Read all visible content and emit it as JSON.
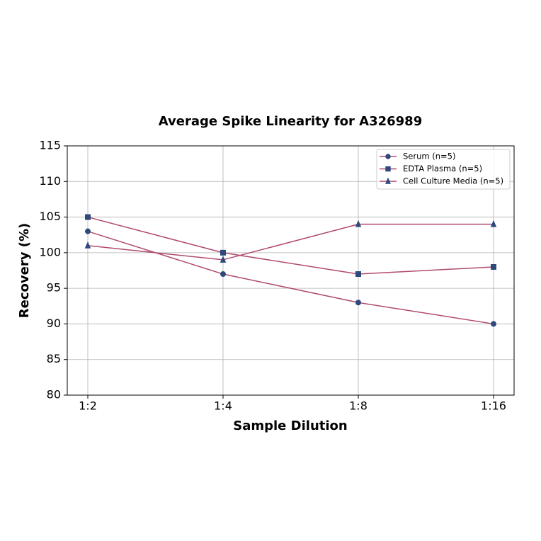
{
  "chart_data": {
    "type": "line",
    "title": "Average Spike Linearity for A326989",
    "x_label": "Sample Dilution",
    "y_label": "Recovery (%)",
    "categories": [
      "1:2",
      "1:4",
      "1:8",
      "1:16"
    ],
    "series": [
      {
        "name": "Serum (n=5)",
        "color": "#b04a6e",
        "marker": "circle",
        "marker_color": "#2e4a7c",
        "values": [
          103,
          97,
          93,
          90
        ]
      },
      {
        "name": "EDTA Plasma (n=5)",
        "color": "#b04a6e",
        "marker": "square",
        "marker_color": "#2e4a7c",
        "values": [
          105,
          100,
          97,
          98
        ]
      },
      {
        "name": "Cell Culture Media (n=5)",
        "color": "#b04a6e",
        "marker": "triangle",
        "marker_color": "#2e4a7c",
        "values": [
          101,
          99,
          104,
          104
        ]
      }
    ],
    "ylim": [
      80,
      115
    ],
    "yticks": [
      80,
      85,
      90,
      95,
      100,
      105,
      110,
      115
    ],
    "grid": true,
    "legend": "upper right"
  }
}
